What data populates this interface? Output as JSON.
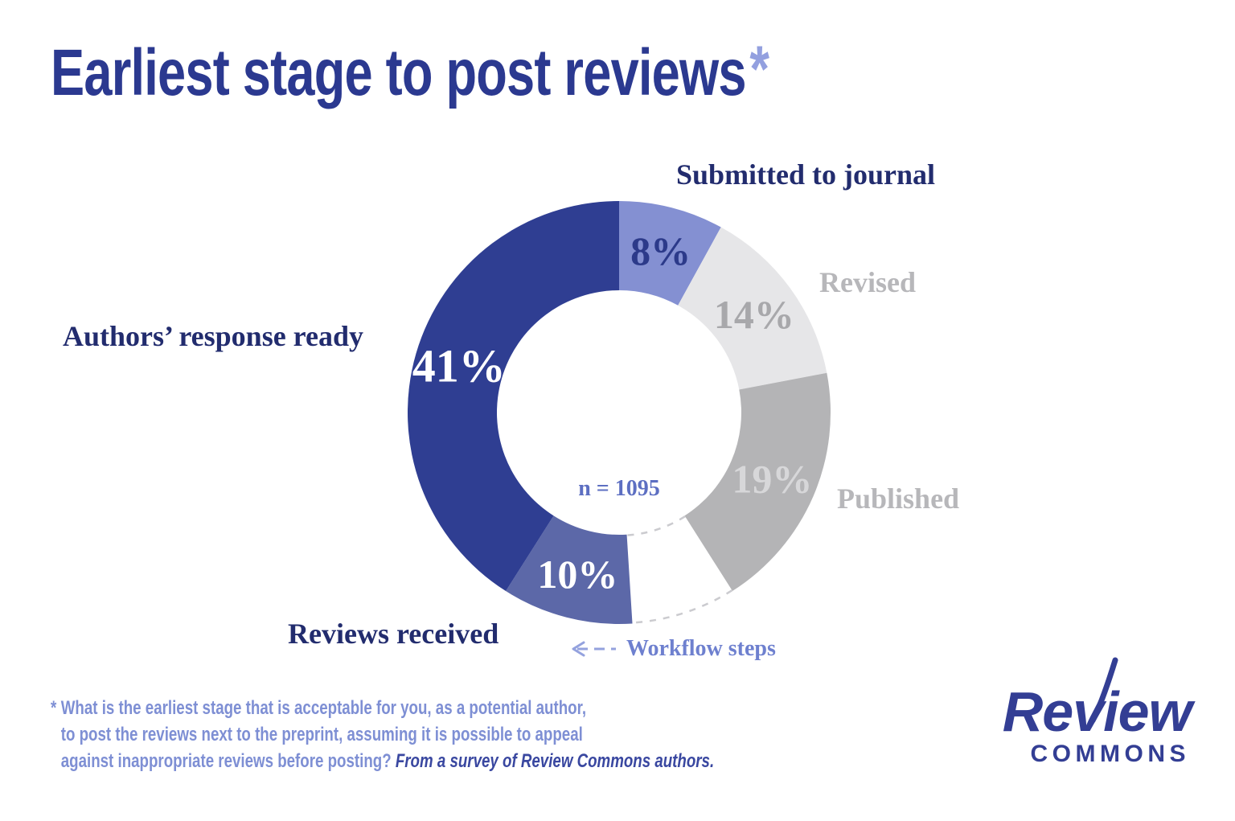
{
  "title": {
    "text": "Earliest stage to post reviews",
    "asterisk": "*"
  },
  "chart_data": {
    "type": "donut",
    "title": "Earliest stage to post reviews*",
    "unit": "%",
    "n_label": "n = 1095",
    "start_angle_deg": 0,
    "direction": "clockwise",
    "gap_dash_color": "#cbcbcf",
    "segments": [
      {
        "id": "submitted-to-journal",
        "label": "Submitted to journal",
        "value": 8,
        "color": "#8490d2",
        "pct_color": "#2c3a8a",
        "label_color": "#222c6e"
      },
      {
        "id": "revised",
        "label": "Revised",
        "value": 14,
        "color": "#e6e6e8",
        "pct_color": "#a8a8ab",
        "label_color": "#b7b7ba"
      },
      {
        "id": "published",
        "label": "Published",
        "value": 19,
        "color": "#b4b4b6",
        "pct_color": "#d7d7d9",
        "label_color": "#b7b7ba"
      },
      {
        "id": "unlabeled-gap",
        "label": "",
        "value": 8,
        "color": "#ffffff",
        "show_pct": false,
        "workflow_gap": true
      },
      {
        "id": "reviews-received",
        "label": "Reviews received",
        "value": 10,
        "color": "#5c68a8",
        "pct_color": "#ffffff",
        "label_color": "#222c6e"
      },
      {
        "id": "authors-response-ready",
        "label": "Authors’ response ready",
        "value": 41,
        "color": "#2f3e92",
        "pct_color": "#ffffff",
        "label_color": "#222c6e"
      }
    ],
    "annotation": {
      "label": "Workflow steps"
    }
  },
  "footnote": {
    "marker": "*",
    "line1": "What is the earliest stage that is acceptable for you, as a potential author,",
    "line2": "to post the reviews next to the preprint, assuming it is possible to appeal",
    "line3_regular": "against inappropriate reviews before posting? ",
    "line3_italic": "From a survey of Review Commons authors."
  },
  "logo": {
    "top": "Review",
    "bottom": "COMMONS"
  }
}
